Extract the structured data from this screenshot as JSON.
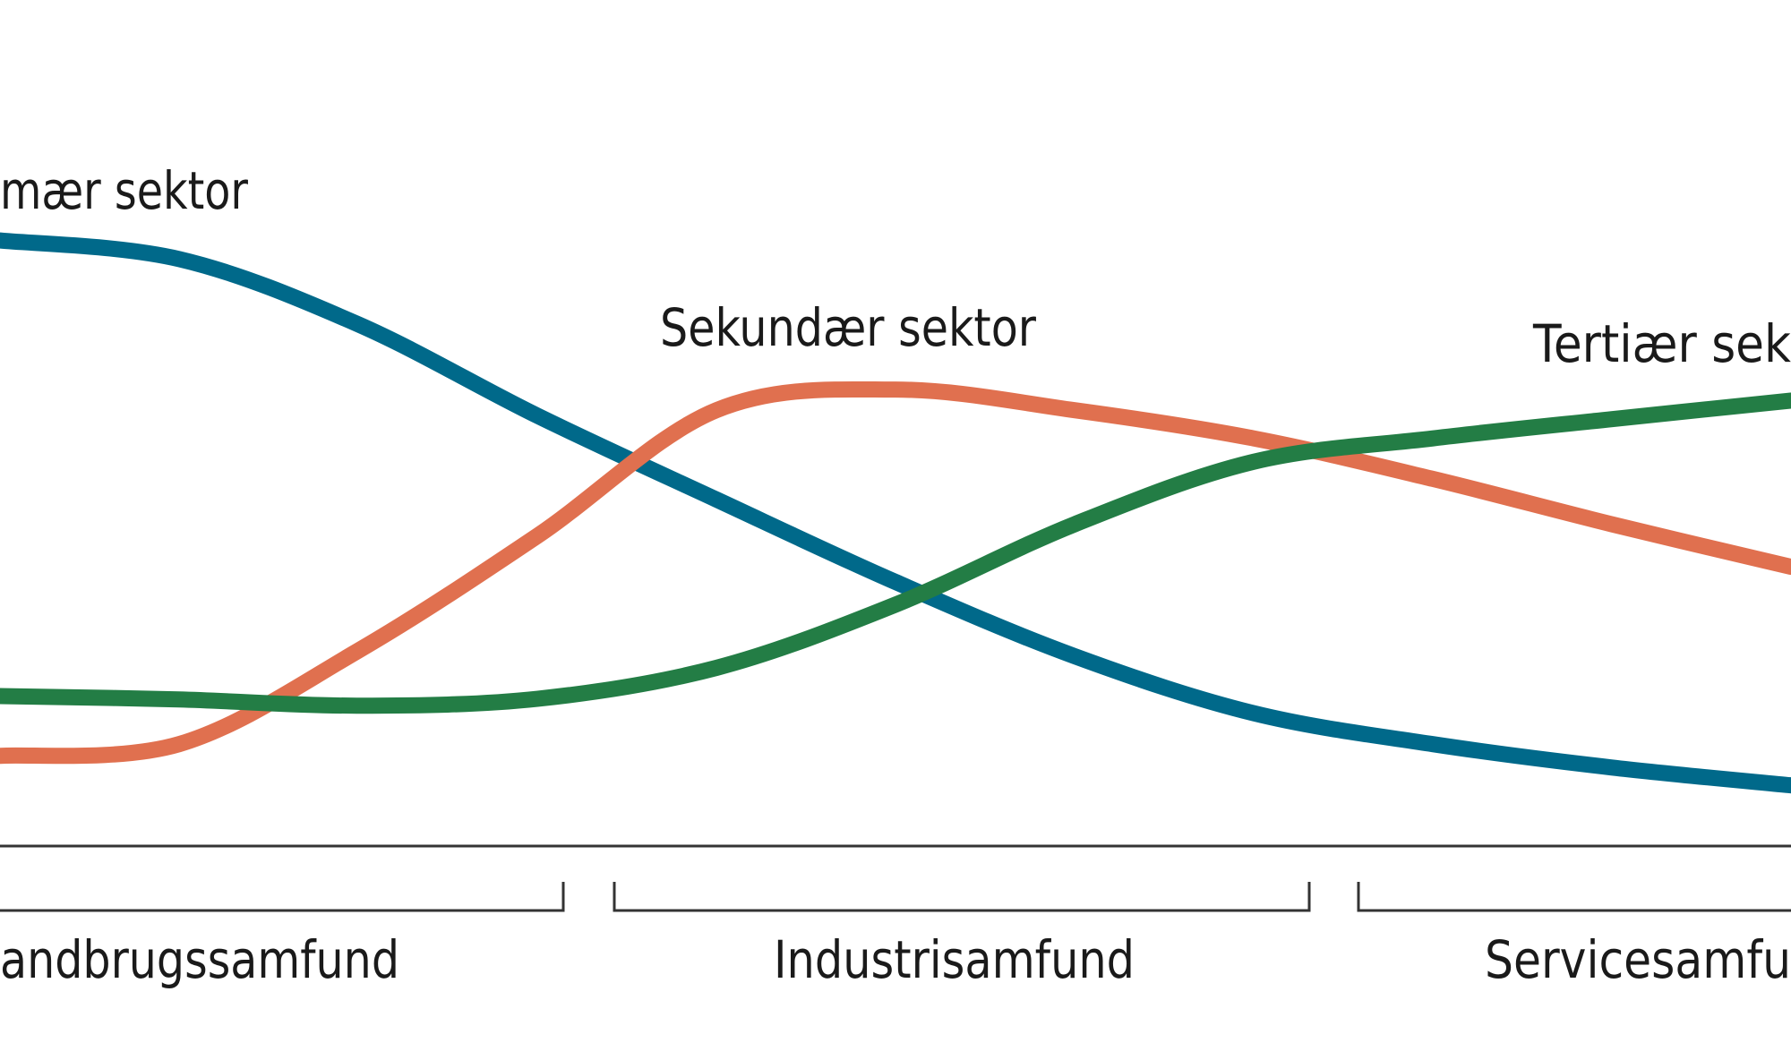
{
  "chart_data": {
    "type": "line",
    "x": [
      0,
      10,
      20,
      30,
      40,
      50,
      60,
      70,
      80,
      90,
      100
    ],
    "xlim": [
      0,
      100
    ],
    "ylim": [
      0,
      123
    ],
    "series": [
      {
        "name": "mær sektor",
        "color": "#00698a",
        "values": [
          88,
          85.3,
          75.8,
          62.5,
          50.3,
          38.3,
          27.5,
          19.2,
          14.7,
          11.3,
          8.7
        ]
      },
      {
        "name": "Sekundær sektor",
        "color": "#e0704f",
        "values": [
          13,
          14.7,
          28.3,
          45,
          63.3,
          66.3,
          63.3,
          59.2,
          53.3,
          46.7,
          40.5
        ]
      },
      {
        "name": "Tertiær sek",
        "color": "#237d45",
        "values": [
          21.7,
          21.2,
          20.3,
          21.3,
          25.8,
          35,
          46.7,
          55.8,
          59.2,
          62,
          64.7
        ]
      }
    ],
    "periods": [
      "andbrugssamfund",
      "Industrisamfund",
      "Servicesamfu"
    ]
  }
}
